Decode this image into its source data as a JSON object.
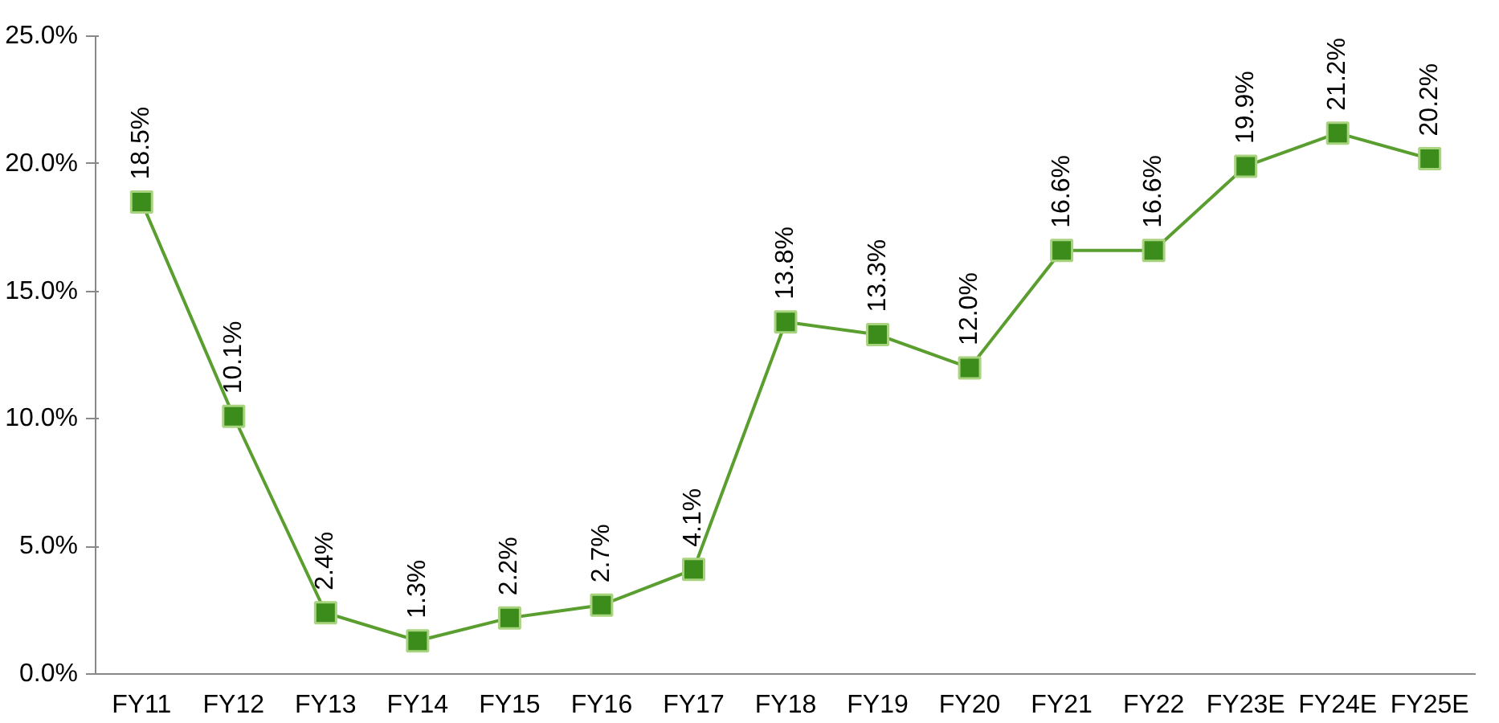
{
  "chart_data": {
    "type": "line",
    "categories": [
      "FY11",
      "FY12",
      "FY13",
      "FY14",
      "FY15",
      "FY16",
      "FY17",
      "FY18",
      "FY19",
      "FY20",
      "FY21",
      "FY22",
      "FY23E",
      "FY24E",
      "FY25E"
    ],
    "series": [
      {
        "color": "#5a9e2f",
        "values": [
          18.5,
          10.1,
          2.4,
          1.3,
          2.2,
          2.7,
          4.1,
          13.8,
          13.3,
          12.0,
          16.6,
          16.6,
          19.9,
          21.2,
          20.2
        ],
        "value_labels": [
          "18.5%",
          "10.1%",
          "2.4%",
          "1.3%",
          "2.2%",
          "2.7%",
          "4.1%",
          "13.8%",
          "13.3%",
          "12.0%",
          "16.6%",
          "16.6%",
          "19.9%",
          "21.2%",
          "20.2%"
        ]
      }
    ],
    "ylim": [
      0,
      25
    ],
    "yticks": [
      {
        "value": 0,
        "label": "0.0%"
      },
      {
        "value": 5,
        "label": "5.0%"
      },
      {
        "value": 10,
        "label": "10.0%"
      },
      {
        "value": 15,
        "label": "15.0%"
      },
      {
        "value": 20,
        "label": "20.0%"
      },
      {
        "value": 25,
        "label": "25.0%"
      }
    ],
    "marker": "square",
    "line_style": "solid",
    "grid": false
  }
}
